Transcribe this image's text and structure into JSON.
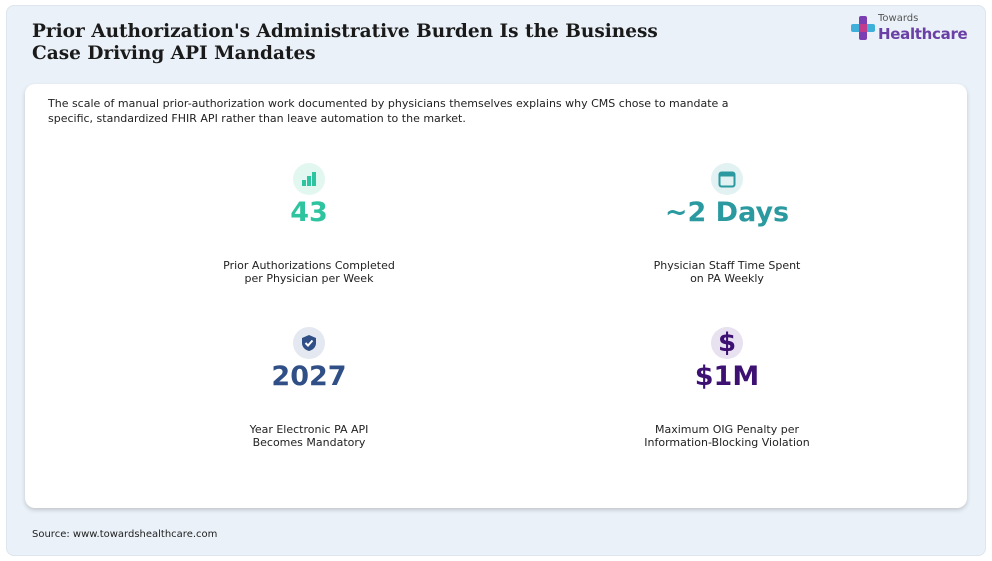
{
  "title": "Prior Authorization's Administrative Burden Is the Business Case Driving API Mandates",
  "logo": {
    "small_text": "Towards",
    "big_text": "Healthcare"
  },
  "intro": "The scale of manual prior-authorization work documented by physicians themselves explains why CMS chose to mandate a specific, standardized FHIR API rather than leave automation to the market.",
  "stats": [
    {
      "value": "43",
      "label_line1": "Prior Authorizations Completed",
      "label_line2": "per Physician per Week",
      "icon": "bar-chart-icon",
      "color": "#2ec4a0"
    },
    {
      "value": "~2 Days",
      "label_line1": "Physician Staff Time Spent",
      "label_line2": "on PA Weekly",
      "icon": "calendar-icon",
      "color": "#2a9aa0"
    },
    {
      "value": "2027",
      "label_line1": "Year Electronic PA API",
      "label_line2": "Becomes Mandatory",
      "icon": "shield-check-icon",
      "color": "#2f4f86"
    },
    {
      "value": "$1M",
      "label_line1": "Maximum OIG Penalty per",
      "label_line2": "Information-Blocking Violation",
      "icon": "dollar-sign-icon",
      "color": "#3d1172"
    }
  ],
  "source": "Source: www.towardshealthcare.com"
}
